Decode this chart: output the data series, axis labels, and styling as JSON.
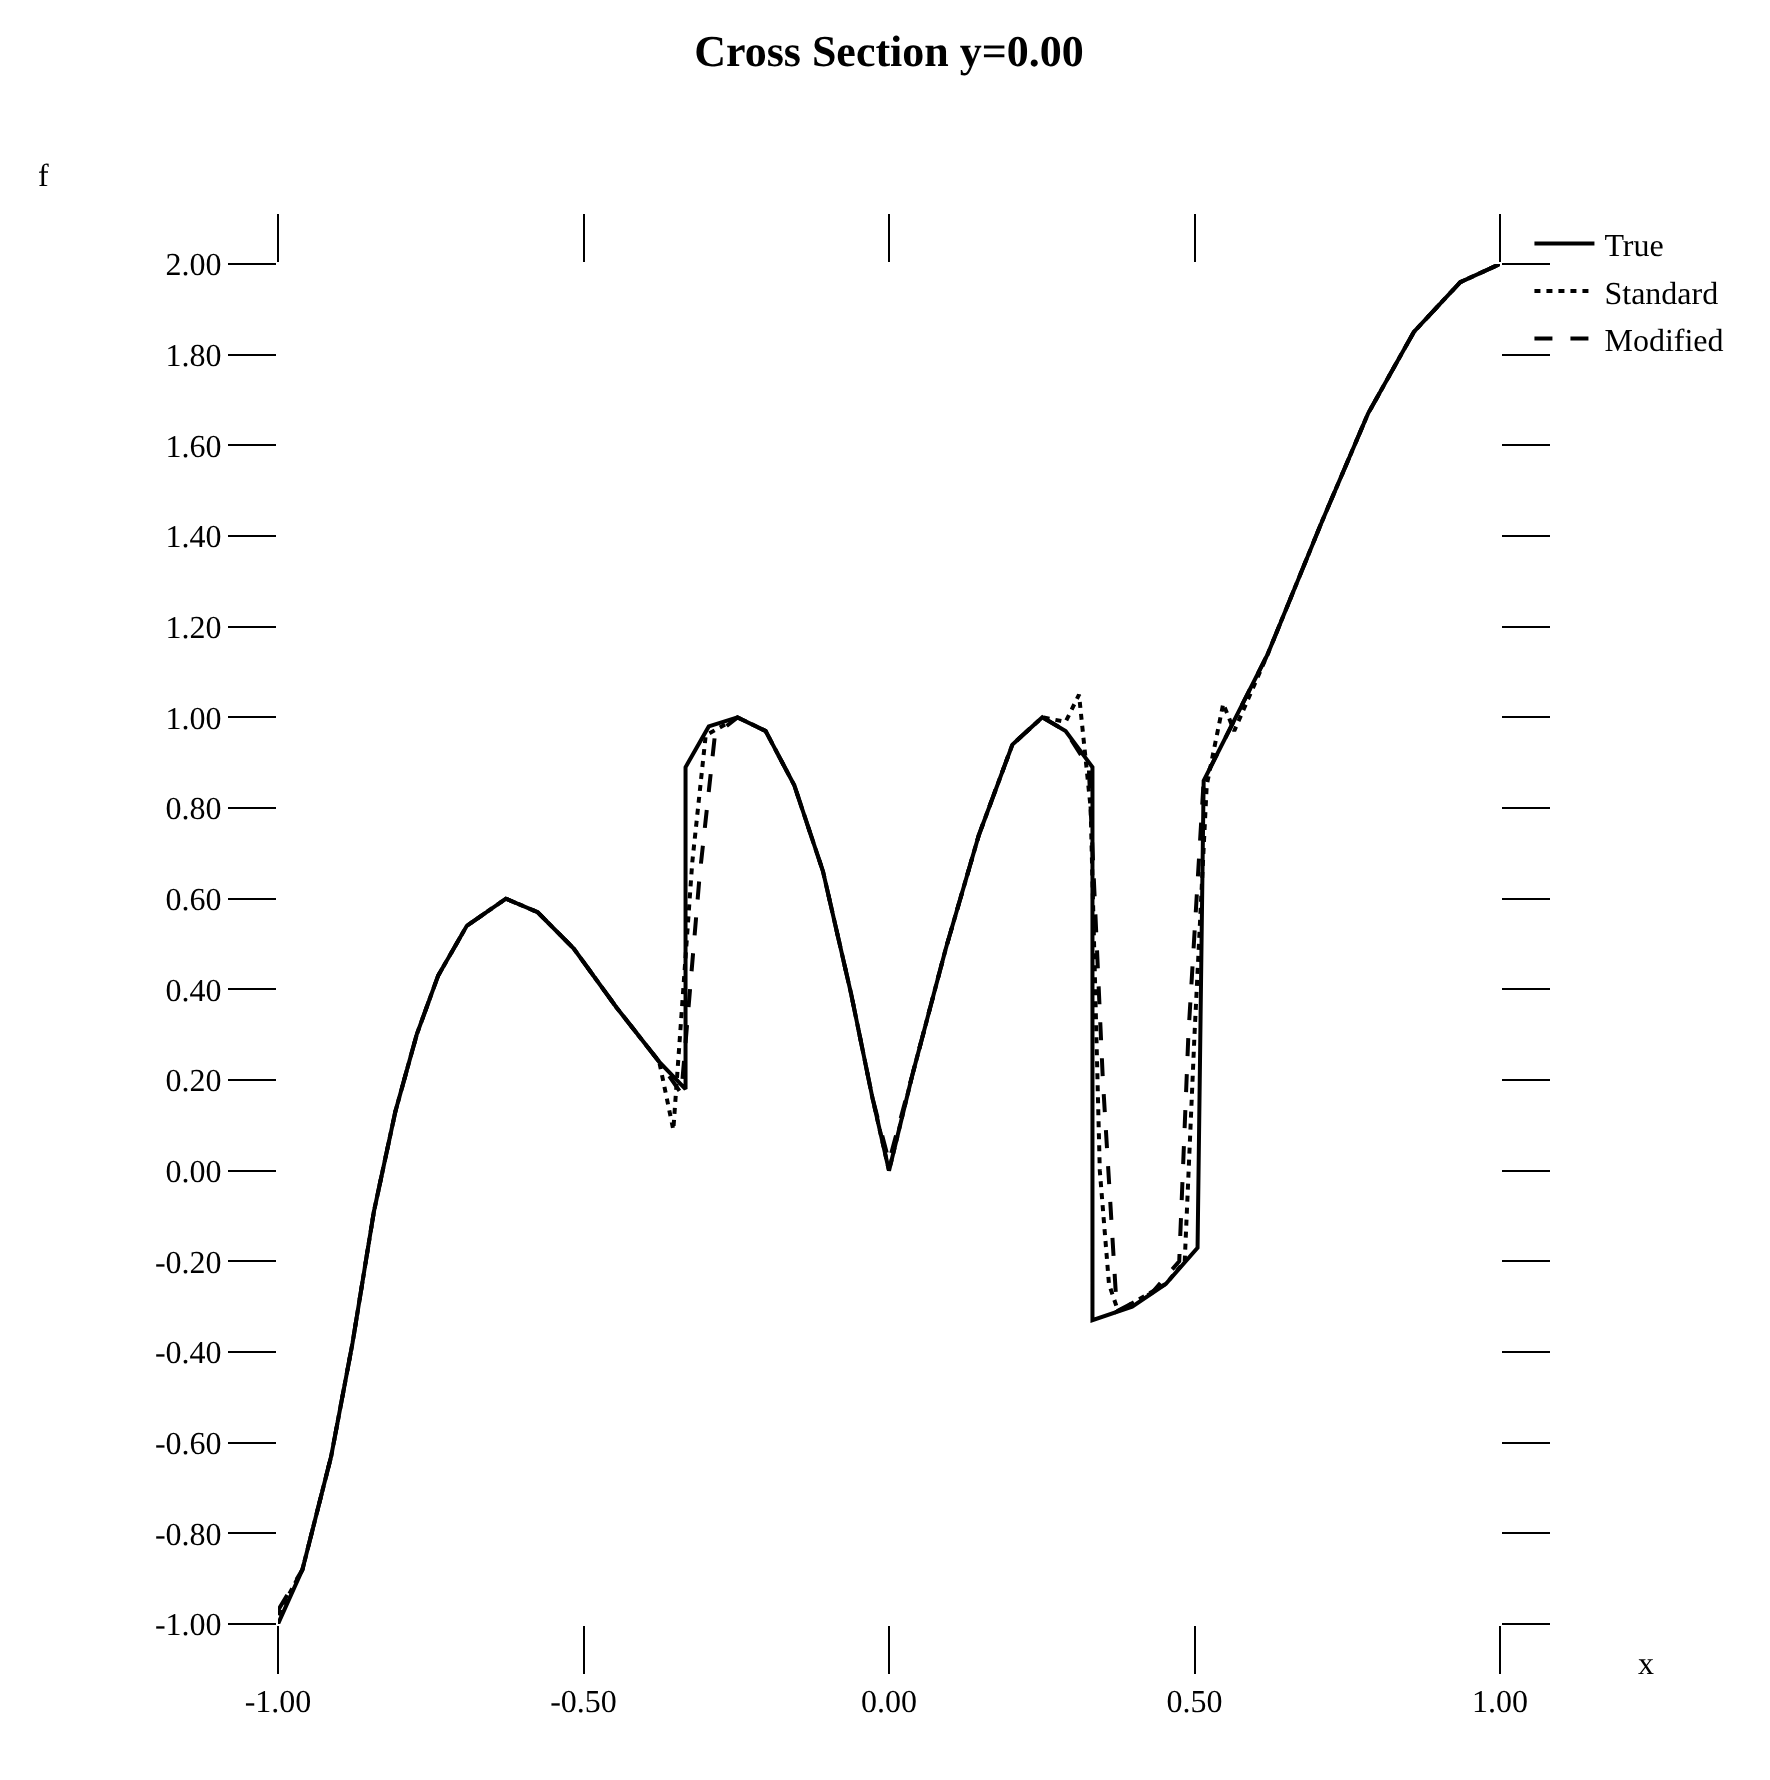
{
  "chart_data": {
    "type": "line",
    "title": "Cross Section y=0.00",
    "xlabel": "x",
    "ylabel": "f",
    "xlim": [
      -1,
      1
    ],
    "xticks": [
      {
        "value": -1,
        "label": "-1.00"
      },
      {
        "value": -0.5,
        "label": "-0.50"
      },
      {
        "value": 0,
        "label": "0.00"
      },
      {
        "value": 0.5,
        "label": "0.50"
      },
      {
        "value": 1,
        "label": "1.00"
      }
    ],
    "ylim": [
      -1,
      2
    ],
    "yticks": [
      {
        "value": -1,
        "label": "-1.00"
      },
      {
        "value": -0.8,
        "label": "-0.80"
      },
      {
        "value": -0.6,
        "label": "-0.60"
      },
      {
        "value": -0.4,
        "label": "-0.40"
      },
      {
        "value": -0.2,
        "label": "-0.20"
      },
      {
        "value": 0,
        "label": "0.00"
      },
      {
        "value": 0.2,
        "label": "0.20"
      },
      {
        "value": 0.4,
        "label": "0.40"
      },
      {
        "value": 0.6,
        "label": "0.60"
      },
      {
        "value": 0.8,
        "label": "0.80"
      },
      {
        "value": 1,
        "label": "1.00"
      },
      {
        "value": 1.2,
        "label": "1.20"
      },
      {
        "value": 1.4,
        "label": "1.40"
      },
      {
        "value": 1.6,
        "label": "1.60"
      },
      {
        "value": 1.8,
        "label": "1.80"
      },
      {
        "value": 2,
        "label": "2.00"
      }
    ],
    "grid": false,
    "legend": "top right",
    "marker": "none",
    "series": [
      {
        "name": "True",
        "color": "#000000",
        "line_style": "solid",
        "x": [
          -1,
          -0.96,
          -0.913,
          -0.878,
          -0.843,
          -0.808,
          -0.773,
          -0.738,
          -0.691,
          -0.627,
          -0.575,
          -0.516,
          -0.446,
          -0.376,
          -0.333,
          -0.333,
          -0.295,
          -0.248,
          -0.202,
          -0.155,
          -0.108,
          -0.062,
          -0.027,
          0,
          0.038,
          0.093,
          0.147,
          0.202,
          0.251,
          0.289,
          0.333,
          0.333,
          0.398,
          0.453,
          0.505,
          0.515,
          0.62,
          0.708,
          0.784,
          0.859,
          0.935,
          1
        ],
        "values": [
          -1,
          -0.88,
          -0.63,
          -0.38,
          -0.09,
          0.13,
          0.3,
          0.43,
          0.54,
          0.6,
          0.57,
          0.49,
          0.36,
          0.24,
          0.18,
          0.89,
          0.98,
          1,
          0.97,
          0.85,
          0.66,
          0.39,
          0.16,
          0,
          0.21,
          0.49,
          0.74,
          0.94,
          1,
          0.97,
          0.89,
          -0.33,
          -0.3,
          -0.25,
          -0.17,
          0.86,
          1.14,
          1.43,
          1.67,
          1.85,
          1.96,
          2
        ]
      },
      {
        "name": "Standard",
        "color": "#000000",
        "line_style": "dotted",
        "x": [
          -1,
          -0.96,
          -0.913,
          -0.878,
          -0.843,
          -0.808,
          -0.773,
          -0.738,
          -0.691,
          -0.627,
          -0.575,
          -0.516,
          -0.446,
          -0.376,
          -0.353,
          -0.322,
          -0.3,
          -0.248,
          -0.202,
          -0.155,
          -0.108,
          -0.062,
          -0.027,
          0,
          0.038,
          0.093,
          0.147,
          0.202,
          0.251,
          0.289,
          0.311,
          0.33,
          0.345,
          0.36,
          0.375,
          0.453,
          0.484,
          0.5,
          0.52,
          0.547,
          0.565,
          0.62,
          0.708,
          0.784,
          0.859,
          0.935,
          1
        ],
        "values": [
          -0.98,
          -0.88,
          -0.63,
          -0.38,
          -0.09,
          0.13,
          0.3,
          0.43,
          0.54,
          0.6,
          0.57,
          0.49,
          0.36,
          0.24,
          0.09,
          0.68,
          0.96,
          1,
          0.97,
          0.85,
          0.66,
          0.39,
          0.16,
          0,
          0.21,
          0.49,
          0.74,
          0.94,
          1,
          0.99,
          1.05,
          0.8,
          0,
          -0.25,
          -0.31,
          -0.25,
          -0.2,
          0.3,
          0.85,
          1.03,
          0.97,
          1.14,
          1.43,
          1.67,
          1.85,
          1.96,
          2
        ]
      },
      {
        "name": "Modified",
        "color": "#000000",
        "line_style": "dashed",
        "x": [
          -1,
          -0.96,
          -0.913,
          -0.878,
          -0.843,
          -0.808,
          -0.773,
          -0.738,
          -0.691,
          -0.627,
          -0.575,
          -0.516,
          -0.446,
          -0.376,
          -0.34,
          -0.31,
          -0.285,
          -0.248,
          -0.202,
          -0.155,
          -0.108,
          -0.062,
          -0.027,
          0,
          0.038,
          0.093,
          0.147,
          0.202,
          0.251,
          0.289,
          0.327,
          0.35,
          0.373,
          0.43,
          0.475,
          0.49,
          0.515,
          0.62,
          0.708,
          0.784,
          0.859,
          0.935,
          1
        ],
        "values": [
          -0.97,
          -0.88,
          -0.63,
          -0.38,
          -0.09,
          0.13,
          0.3,
          0.43,
          0.54,
          0.6,
          0.57,
          0.49,
          0.36,
          0.24,
          0.17,
          0.65,
          0.96,
          1,
          0.97,
          0.85,
          0.66,
          0.39,
          0.16,
          0.02,
          0.21,
          0.49,
          0.74,
          0.94,
          1,
          0.97,
          0.89,
          0.2,
          -0.31,
          -0.27,
          -0.2,
          0.3,
          0.86,
          1.14,
          1.43,
          1.67,
          1.85,
          1.96,
          2
        ]
      }
    ]
  }
}
